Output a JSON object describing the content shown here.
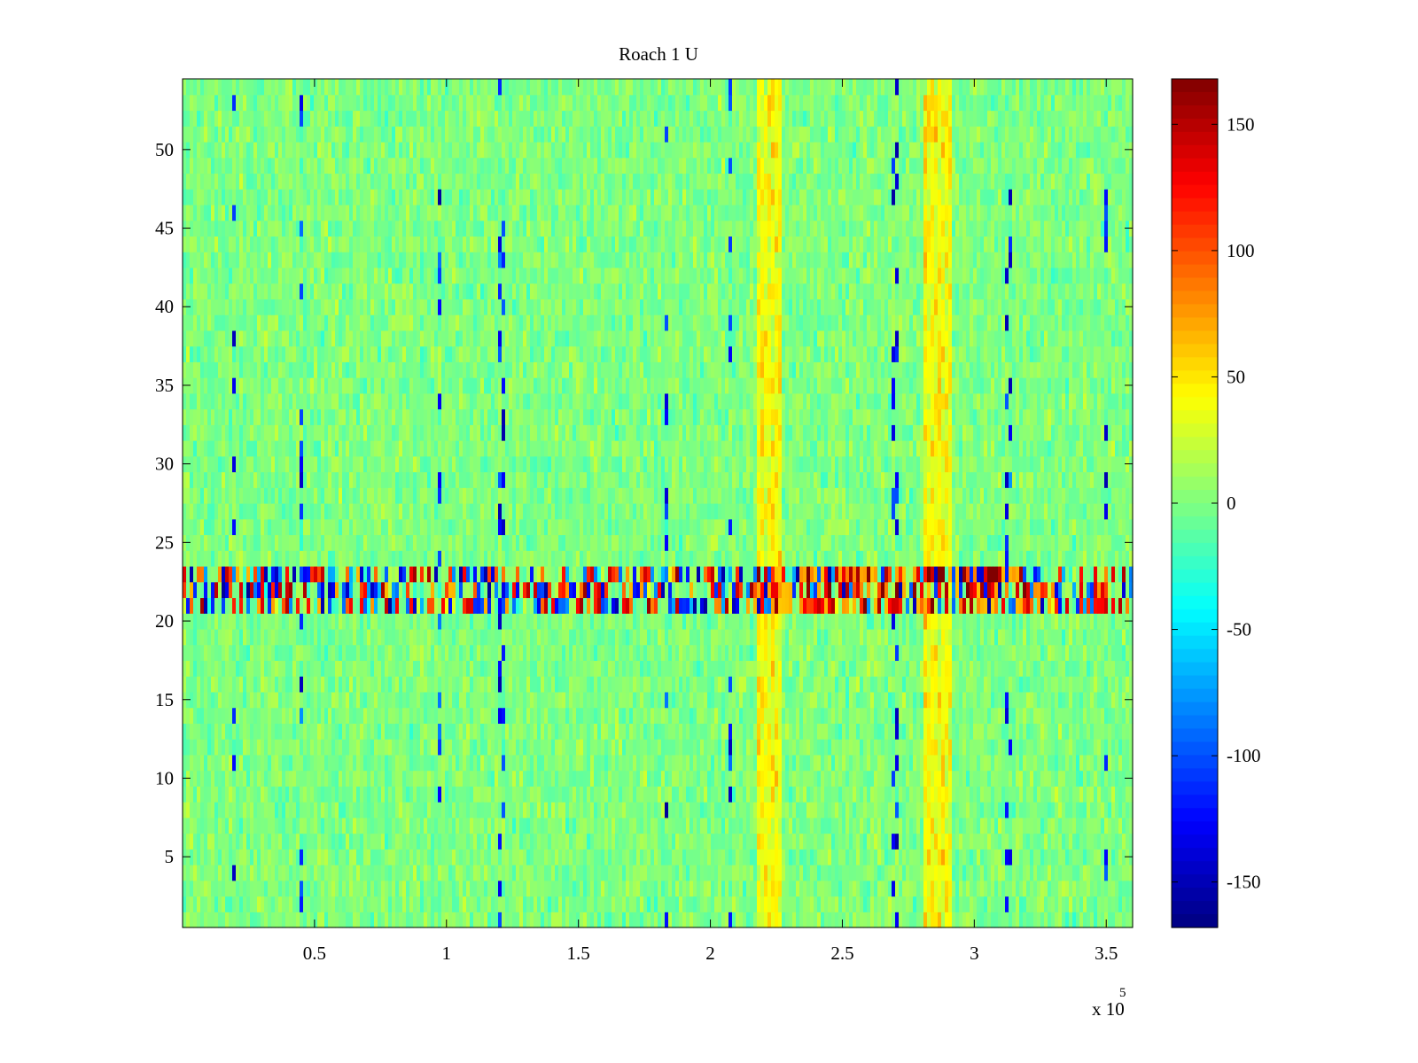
{
  "chart_data": {
    "type": "heatmap",
    "title": "Roach 1 U",
    "xlabel": "",
    "ylabel": "",
    "colormap": "jet",
    "x_range": [
      0,
      360000
    ],
    "y_range": [
      0.5,
      54.5
    ],
    "rows": 54,
    "x_ticks": [
      0.5,
      1,
      1.5,
      2,
      2.5,
      3,
      3.5
    ],
    "x_tick_labels": [
      "0.5",
      "1",
      "1.5",
      "2",
      "2.5",
      "3",
      "3.5"
    ],
    "x_exponent_base": "x 10",
    "x_exponent_power": "5",
    "y_ticks": [
      5,
      10,
      15,
      20,
      25,
      30,
      35,
      40,
      45,
      50
    ],
    "y_tick_labels": [
      "5",
      "10",
      "15",
      "20",
      "25",
      "30",
      "35",
      "40",
      "45",
      "50"
    ],
    "colorbar": {
      "range": [
        -168,
        168
      ],
      "ticks": [
        -150,
        -100,
        -50,
        0,
        50,
        100,
        150
      ],
      "tick_labels": [
        "-150",
        "-100",
        "-50",
        "0",
        "50",
        "100",
        "150"
      ]
    },
    "baseline_value": 0,
    "noise_amplitude": 14,
    "features": {
      "high_variance_rows": [
        21,
        22,
        23
      ],
      "high_variance_amplitude": 160,
      "positive_bands": [
        {
          "x_start": 217000,
          "x_end": 227000,
          "value": 45
        },
        {
          "x_start": 281000,
          "x_end": 292000,
          "value": 45
        }
      ],
      "spike_columns_x": [
        20000,
        45000,
        97000,
        121000,
        183000,
        207000,
        270000,
        313000,
        350000
      ]
    }
  }
}
